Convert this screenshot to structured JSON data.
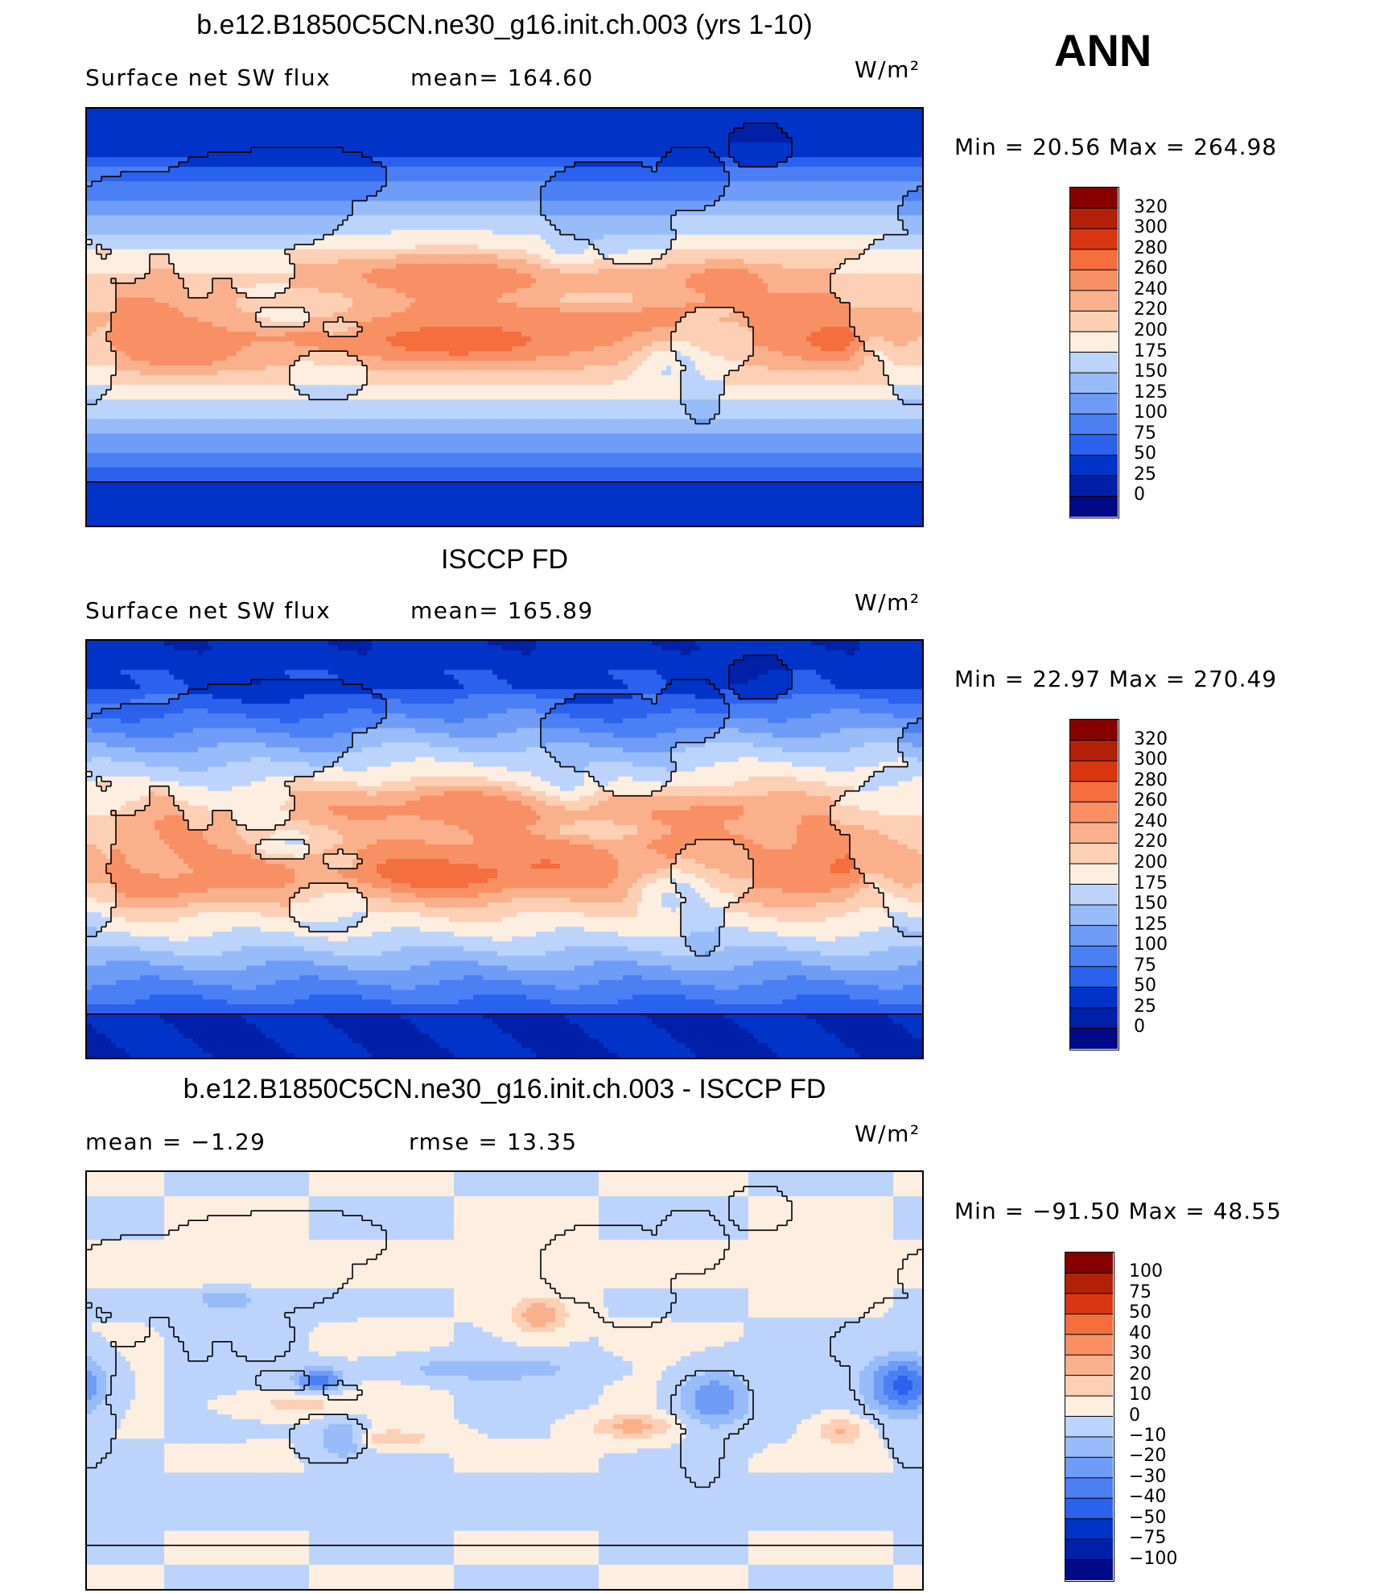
{
  "season": "ANN",
  "units": "W/m²",
  "colormaps": {
    "abs": [
      "#000a87",
      "#0020a8",
      "#0034c8",
      "#1046e0",
      "#2a62ee",
      "#4b80f5",
      "#6f9cf7",
      "#98bcf9",
      "#bcd4fb",
      "#dceafc",
      "#fdeee0",
      "#fdd0b6",
      "#fbb08c",
      "#f89064",
      "#f46e3e",
      "#ee4c1e",
      "#d83610",
      "#b32008",
      "#860000"
    ],
    "diff": [
      "#000a87",
      "#0020a8",
      "#0034c8",
      "#1046e0",
      "#2a62ee",
      "#4b80f5",
      "#6f9cf7",
      "#98bcf9",
      "#bcd4fb",
      "#dceafc",
      "#fdeee0",
      "#fdd0b6",
      "#fbb08c",
      "#f89064",
      "#f46e3e",
      "#ee4c1e",
      "#d83610",
      "#b32008",
      "#860000"
    ]
  },
  "panels": [
    {
      "title": "b.e12.B1850C5CN.ne30_g16.init.ch.003 (yrs 1-10)",
      "left_label": "Surface net SW flux",
      "right_label": "mean=  164.60",
      "units": "W/m²",
      "minmax": "Min  =    20.56  Max  =  264.98",
      "colorbar_labels": [
        "320",
        "300",
        "280",
        "260",
        "240",
        "220",
        "200",
        "175",
        "150",
        "125",
        "100",
        "75",
        "50",
        "25",
        "0"
      ],
      "colorbar_colors": "abs"
    },
    {
      "title": "ISCCP FD",
      "left_label": "Surface net SW flux",
      "right_label": "mean=  165.89",
      "units": "W/m²",
      "minmax": "Min  =    22.97  Max  =  270.49",
      "colorbar_labels": [
        "320",
        "300",
        "280",
        "260",
        "240",
        "220",
        "200",
        "175",
        "150",
        "125",
        "100",
        "75",
        "50",
        "25",
        "0"
      ],
      "colorbar_colors": "abs"
    },
    {
      "title": "b.e12.B1850C5CN.ne30_g16.init.ch.003 - ISCCP FD",
      "left_label": "mean  =    −1.29",
      "right_label": "rmse  =    13.35",
      "units": "W/m²",
      "minmax": "Min  = −91.50  Max  =    48.55",
      "colorbar_labels": [
        "100",
        "75",
        "50",
        "40",
        "30",
        "20",
        "10",
        "0",
        "−10",
        "−20",
        "−30",
        "−40",
        "−50",
        "−75",
        "−100"
      ],
      "colorbar_colors": "diff"
    }
  ],
  "chart_data": [
    {
      "type": "heatmap",
      "title": "b.e12.B1850C5CN.ne30_g16.init.ch.003 (yrs 1-10)",
      "variable": "Surface net SW flux",
      "units": "W/m²",
      "mean": 164.6,
      "min": 20.56,
      "max": 264.98,
      "contour_levels": [
        0,
        25,
        50,
        75,
        100,
        125,
        150,
        175,
        200,
        220,
        240,
        260,
        280,
        300,
        320
      ]
    },
    {
      "type": "heatmap",
      "title": "ISCCP FD",
      "variable": "Surface net SW flux",
      "units": "W/m²",
      "mean": 165.89,
      "min": 22.97,
      "max": 270.49,
      "contour_levels": [
        0,
        25,
        50,
        75,
        100,
        125,
        150,
        175,
        200,
        220,
        240,
        260,
        280,
        300,
        320
      ]
    },
    {
      "type": "heatmap",
      "title": "b.e12.B1850C5CN.ne30_g16.init.ch.003 - ISCCP FD",
      "units": "W/m²",
      "mean": -1.29,
      "rmse": 13.35,
      "min": -91.5,
      "max": 48.55,
      "contour_levels": [
        -100,
        -75,
        -50,
        -40,
        -30,
        -20,
        -10,
        0,
        10,
        20,
        30,
        40,
        50,
        75,
        100
      ]
    }
  ]
}
